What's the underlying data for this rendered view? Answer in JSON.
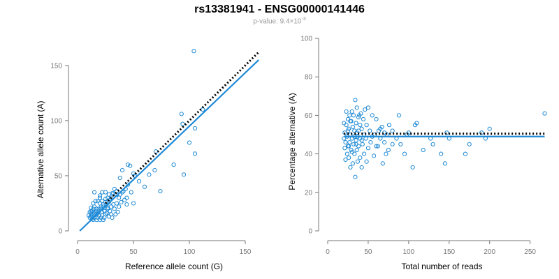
{
  "title": "rs13381941 - ENSG00000141446",
  "subtitle": {
    "prefix": "p-value: 9.4×10",
    "exponent": "-3"
  },
  "colors": {
    "points": "#1f8ad6",
    "fit": "#1f8ad6",
    "expected": "#000000",
    "axis": "#777777"
  },
  "chart_data": [
    {
      "type": "scatter",
      "title": "",
      "xlabel": "Reference allele count (G)",
      "ylabel": "Alternative allele count (A)",
      "xlim": [
        0,
        160
      ],
      "ylim": [
        0,
        160
      ],
      "xticks": [
        0,
        50,
        100,
        150
      ],
      "yticks": [
        0,
        50,
        100,
        150
      ],
      "grid": false,
      "lines": [
        {
          "kind": "fit",
          "style": "solid",
          "x": [
            2,
            162
          ],
          "y": [
            0,
            155
          ]
        },
        {
          "kind": "expected",
          "style": "dotted",
          "x": [
            25,
            162
          ],
          "y": [
            25,
            162
          ]
        }
      ],
      "points": [
        [
          104,
          163
        ],
        [
          93,
          106
        ],
        [
          94,
          97
        ],
        [
          105,
          93
        ],
        [
          100,
          80
        ],
        [
          112,
          110
        ],
        [
          105,
          70
        ],
        [
          95,
          51
        ],
        [
          86,
          60
        ],
        [
          70,
          72
        ],
        [
          69,
          55
        ],
        [
          74,
          36
        ],
        [
          64,
          51
        ],
        [
          60,
          40
        ],
        [
          55,
          45
        ],
        [
          50,
          52
        ],
        [
          51,
          50
        ],
        [
          45,
          60
        ],
        [
          47,
          59
        ],
        [
          40,
          55
        ],
        [
          38,
          48
        ],
        [
          45,
          42
        ],
        [
          43,
          38
        ],
        [
          40,
          35
        ],
        [
          37,
          30
        ],
        [
          48,
          35
        ],
        [
          50,
          25
        ],
        [
          44,
          24
        ],
        [
          33,
          38
        ],
        [
          35,
          33
        ],
        [
          31,
          34
        ],
        [
          28,
          33
        ],
        [
          25,
          35
        ],
        [
          22,
          35
        ],
        [
          30,
          30
        ],
        [
          28,
          26
        ],
        [
          25,
          29
        ],
        [
          22,
          27
        ],
        [
          26,
          24
        ],
        [
          20,
          25
        ],
        [
          23,
          22
        ],
        [
          18,
          27
        ],
        [
          20,
          30
        ],
        [
          15,
          35
        ],
        [
          17,
          20
        ],
        [
          19,
          18
        ],
        [
          15,
          22
        ],
        [
          14,
          25
        ],
        [
          12,
          21
        ],
        [
          13,
          18
        ],
        [
          16,
          15
        ],
        [
          18,
          12
        ],
        [
          20,
          10
        ],
        [
          22,
          14
        ],
        [
          24,
          18
        ],
        [
          14,
          15
        ],
        [
          12,
          13
        ],
        [
          11,
          17
        ],
        [
          13,
          11
        ],
        [
          15,
          12
        ],
        [
          16,
          17
        ],
        [
          18,
          16
        ],
        [
          21,
          20
        ],
        [
          24,
          21
        ],
        [
          27,
          21
        ],
        [
          30,
          22
        ],
        [
          32,
          24
        ],
        [
          25,
          15
        ],
        [
          28,
          13
        ],
        [
          30,
          15
        ],
        [
          33,
          20
        ],
        [
          35,
          25
        ],
        [
          36,
          17
        ],
        [
          27,
          20
        ],
        [
          24,
          12
        ],
        [
          22,
          17
        ],
        [
          19,
          14
        ],
        [
          17,
          10
        ],
        [
          21,
          12
        ],
        [
          23,
          10
        ],
        [
          26,
          16
        ],
        [
          29,
          18
        ],
        [
          31,
          12
        ],
        [
          34,
          15
        ],
        [
          37,
          22
        ],
        [
          39,
          26
        ],
        [
          42,
          28
        ],
        [
          20,
          32
        ],
        [
          16,
          27
        ],
        [
          14,
          20
        ],
        [
          12,
          15
        ],
        [
          11,
          12
        ],
        [
          13,
          14
        ],
        [
          15,
          16
        ],
        [
          17,
          18
        ],
        [
          19,
          20
        ],
        [
          21,
          22
        ],
        [
          23,
          24
        ],
        [
          10,
          14
        ],
        [
          25,
          26
        ],
        [
          27,
          30
        ],
        [
          29,
          28
        ],
        [
          32,
          34
        ],
        [
          35,
          36
        ],
        [
          38,
          33
        ],
        [
          41,
          36
        ],
        [
          44,
          30
        ],
        [
          12,
          18
        ],
        [
          14,
          10
        ]
      ]
    },
    {
      "type": "scatter",
      "title": "",
      "xlabel": "Total number of reads",
      "ylabel": "Percentage alternative (A)",
      "xlim": [
        0,
        265
      ],
      "ylim": [
        0,
        100
      ],
      "xticks": [
        0,
        50,
        100,
        150,
        200,
        250
      ],
      "yticks": [
        0,
        20,
        40,
        60,
        80,
        100
      ],
      "grid": false,
      "lines": [
        {
          "kind": "fit",
          "style": "solid",
          "x": [
            20,
            268
          ],
          "y": [
            49,
            49
          ]
        },
        {
          "kind": "expected",
          "style": "dotted",
          "x": [
            20,
            268
          ],
          "y": [
            50.5,
            50.5
          ]
        }
      ],
      "points": [
        [
          268,
          61
        ],
        [
          200,
          53
        ],
        [
          190,
          51
        ],
        [
          195,
          48
        ],
        [
          175,
          45
        ],
        [
          170,
          40
        ],
        [
          150,
          48
        ],
        [
          147,
          51
        ],
        [
          145,
          35
        ],
        [
          140,
          40
        ],
        [
          130,
          45
        ],
        [
          127,
          48
        ],
        [
          118,
          42
        ],
        [
          110,
          56
        ],
        [
          108,
          55
        ],
        [
          105,
          33
        ],
        [
          100,
          51
        ],
        [
          98,
          50
        ],
        [
          95,
          40
        ],
        [
          90,
          45
        ],
        [
          88,
          60
        ],
        [
          85,
          48
        ],
        [
          80,
          52
        ],
        [
          76,
          55
        ],
        [
          75,
          42
        ],
        [
          73,
          50
        ],
        [
          72,
          40
        ],
        [
          70,
          46
        ],
        [
          68,
          35
        ],
        [
          67,
          54
        ],
        [
          65,
          48
        ],
        [
          63,
          52
        ],
        [
          62,
          44
        ],
        [
          60,
          58
        ],
        [
          58,
          50
        ],
        [
          57,
          39
        ],
        [
          55,
          60
        ],
        [
          53,
          46
        ],
        [
          52,
          52
        ],
        [
          50,
          64
        ],
        [
          50,
          43
        ],
        [
          48,
          36
        ],
        [
          48,
          55
        ],
        [
          47,
          48
        ],
        [
          46,
          63
        ],
        [
          45,
          40
        ],
        [
          44,
          58
        ],
        [
          43,
          45
        ],
        [
          42,
          33
        ],
        [
          42,
          53
        ],
        [
          41,
          61
        ],
        [
          40,
          48
        ],
        [
          40,
          38
        ],
        [
          39,
          60
        ],
        [
          38,
          44
        ],
        [
          38,
          52
        ],
        [
          37,
          36
        ],
        [
          37,
          49
        ],
        [
          36,
          64
        ],
        [
          36,
          42
        ],
        [
          35,
          56
        ],
        [
          35,
          47
        ],
        [
          34,
          28
        ],
        [
          34,
          68
        ],
        [
          33,
          52
        ],
        [
          33,
          40
        ],
        [
          32,
          60
        ],
        [
          32,
          45
        ],
        [
          31,
          54
        ],
        [
          31,
          35
        ],
        [
          30,
          48
        ],
        [
          30,
          62
        ],
        [
          29,
          42
        ],
        [
          29,
          57
        ],
        [
          28,
          33
        ],
        [
          28,
          50
        ],
        [
          27,
          46
        ],
        [
          27,
          60
        ],
        [
          26,
          38
        ],
        [
          26,
          53
        ],
        [
          25,
          44
        ],
        [
          25,
          58
        ],
        [
          24,
          49
        ],
        [
          24,
          40
        ],
        [
          23,
          62
        ],
        [
          23,
          55
        ],
        [
          22,
          46
        ],
        [
          22,
          37
        ],
        [
          21,
          51
        ],
        [
          21,
          43
        ],
        [
          20,
          56
        ],
        [
          20,
          48
        ],
        [
          35,
          45
        ],
        [
          45,
          50
        ],
        [
          55,
          49
        ],
        [
          65,
          53
        ],
        [
          30,
          41
        ],
        [
          40,
          55
        ],
        [
          25,
          52
        ],
        [
          38,
          59
        ],
        [
          42,
          47
        ],
        [
          33,
          49
        ],
        [
          28,
          57
        ],
        [
          60,
          44
        ],
        [
          70,
          51
        ],
        [
          80,
          45
        ],
        [
          26,
          44
        ],
        [
          36,
          51
        ]
      ]
    }
  ]
}
